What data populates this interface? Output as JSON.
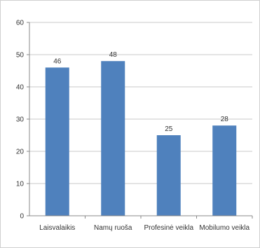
{
  "chart_data": {
    "type": "bar",
    "categories": [
      "Laisvalaikis",
      "Namų ruoša",
      "Profesinė veikla",
      "Mobilumo veikla"
    ],
    "values": [
      46,
      48,
      25,
      28
    ],
    "data_labels": [
      "46",
      "48",
      "25",
      "28"
    ],
    "ylim": [
      0,
      60
    ],
    "yticks": [
      0,
      10,
      20,
      30,
      40,
      50,
      60
    ],
    "ytick_labels": [
      "0",
      "10",
      "20",
      "30",
      "40",
      "50",
      "60"
    ],
    "grid": true,
    "bar_color": "#4f81bd",
    "grid_color": "#c9c9c9"
  }
}
